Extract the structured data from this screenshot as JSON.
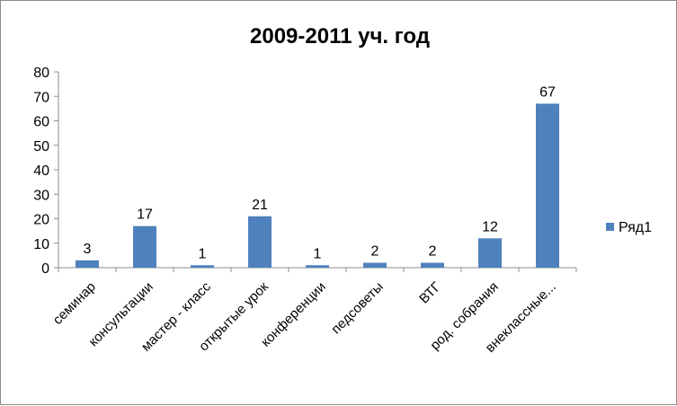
{
  "chart_data": {
    "type": "bar",
    "title": "2009-2011 уч. год",
    "categories": [
      "семинар",
      "консультации",
      "мастер - класс",
      "открытые урок",
      "конференции",
      "педсоветы",
      "ВТГ",
      "род. собрания",
      "внеклассные..."
    ],
    "series": [
      {
        "name": "Ряд1",
        "values": [
          3,
          17,
          1,
          21,
          1,
          2,
          2,
          12,
          67
        ],
        "color": "#4F81BD"
      }
    ],
    "ylim": [
      0,
      80
    ],
    "yticks": [
      0,
      10,
      20,
      30,
      40,
      50,
      60,
      70,
      80
    ],
    "grid": false,
    "legend_position": "right",
    "data_labels": true
  }
}
